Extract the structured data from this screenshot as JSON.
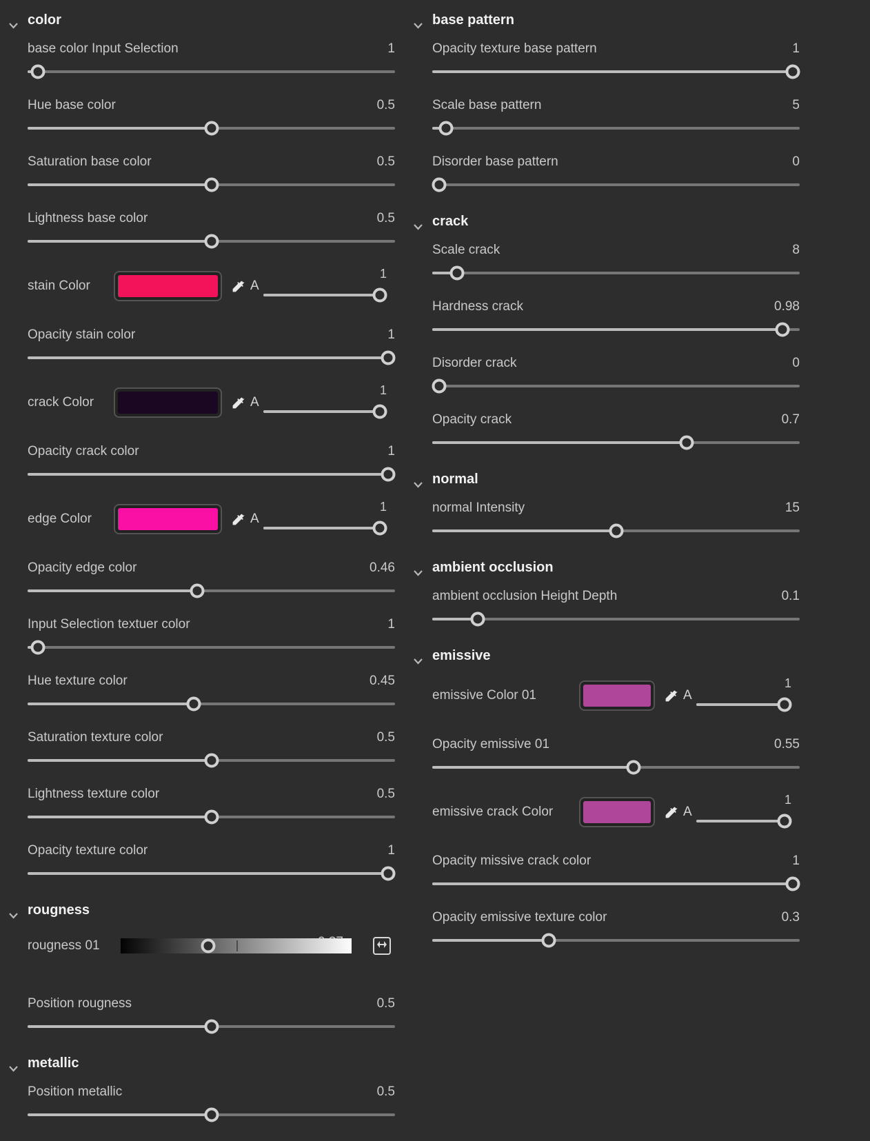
{
  "colors": {
    "panel_bg": "#2e2d2d",
    "header_text": "#f1f1f1",
    "label_text": "#c9c9c9",
    "track_filled": "#bcbcbc",
    "track_empty": "#777676",
    "handle_ring": "#d0d0d0",
    "stain_color": "#f2135a",
    "crack_color": "#1c0723",
    "edge_color": "#fb10a5",
    "emissive_color_01": "#b0469a",
    "emissive_crack_color": "#b0469a"
  },
  "icons": {
    "alpha_label": "A",
    "eyedropper": "eyedropper-icon",
    "chevron": "chevron-down-icon",
    "expand": "left-right-arrows-icon"
  },
  "columns": [
    {
      "name": "left",
      "sections": [
        {
          "title": "color",
          "rows": [
            {
              "type": "slider",
              "label": "base color Input Selection",
              "value": "1",
              "pos": 0.01
            },
            {
              "type": "slider",
              "label": "Hue base color",
              "value": "0.5",
              "pos": 0.5
            },
            {
              "type": "slider",
              "label": "Saturation base color",
              "value": "0.5",
              "pos": 0.5
            },
            {
              "type": "slider",
              "label": "Lightness base color",
              "value": "0.5",
              "pos": 0.5
            },
            {
              "type": "color",
              "label": "stain Color",
              "swatch": "#f2135a",
              "alpha_value": "1",
              "alpha_pos": 1
            },
            {
              "type": "slider",
              "label": "Opacity stain color",
              "value": "1",
              "pos": 1
            },
            {
              "type": "color",
              "label": "crack Color",
              "swatch": "#1c0723",
              "alpha_value": "1",
              "alpha_pos": 1
            },
            {
              "type": "slider",
              "label": "Opacity crack color",
              "value": "1",
              "pos": 1
            },
            {
              "type": "color",
              "label": "edge Color",
              "swatch": "#fb10a5",
              "alpha_value": "1",
              "alpha_pos": 1
            },
            {
              "type": "slider",
              "label": "Opacity edge color",
              "value": "0.46",
              "pos": 0.46
            },
            {
              "type": "slider",
              "label": "Input Selection textuer color",
              "value": "1",
              "pos": 0.01
            },
            {
              "type": "slider",
              "label": "Hue texture color",
              "value": "0.45",
              "pos": 0.45
            },
            {
              "type": "slider",
              "label": "Saturation texture color",
              "value": "0.5",
              "pos": 0.5
            },
            {
              "type": "slider",
              "label": "Lightness texture color",
              "value": "0.5",
              "pos": 0.5
            },
            {
              "type": "slider",
              "label": "Opacity texture color",
              "value": "1",
              "pos": 1
            }
          ]
        },
        {
          "title": "rougness",
          "rows": [
            {
              "type": "gradient",
              "label": "rougness 01",
              "value": "0.37",
              "pos": 0.37
            },
            {
              "type": "slider",
              "label": "Position rougness",
              "value": "0.5",
              "pos": 0.5
            }
          ]
        },
        {
          "title": "metallic",
          "rows": [
            {
              "type": "slider",
              "label": "Position metallic",
              "value": "0.5",
              "pos": 0.5
            }
          ]
        }
      ]
    },
    {
      "name": "right",
      "sections": [
        {
          "title": "base pattern",
          "rows": [
            {
              "type": "slider",
              "label": "Opacity texture base pattern",
              "value": "1",
              "pos": 1
            },
            {
              "type": "slider",
              "label": "Scale base pattern",
              "value": "5",
              "pos": 0.02
            },
            {
              "type": "slider",
              "label": "Disorder base pattern",
              "value": "0",
              "pos": 0
            }
          ]
        },
        {
          "title": "crack",
          "rows": [
            {
              "type": "slider",
              "label": "Scale crack",
              "value": "8",
              "pos": 0.05
            },
            {
              "type": "slider",
              "label": "Hardness crack",
              "value": "0.98",
              "pos": 0.97
            },
            {
              "type": "slider",
              "label": "Disorder crack",
              "value": "0",
              "pos": 0
            },
            {
              "type": "slider",
              "label": "Opacity crack",
              "value": "0.7",
              "pos": 0.7
            }
          ]
        },
        {
          "title": "normal",
          "rows": [
            {
              "type": "slider",
              "label": "normal Intensity",
              "value": "15",
              "pos": 0.5
            }
          ]
        },
        {
          "title": "ambient occlusion",
          "rows": [
            {
              "type": "slider",
              "label": "ambient occlusion Height Depth",
              "value": "0.1",
              "pos": 0.11
            }
          ]
        },
        {
          "title": "emissive",
          "rows": [
            {
              "type": "color",
              "label": "emissive Color 01",
              "swatch": "#b0469a",
              "alpha_value": "1",
              "alpha_pos": 1
            },
            {
              "type": "slider",
              "label": "Opacity emissive 01",
              "value": "0.55",
              "pos": 0.55
            },
            {
              "type": "color",
              "label": "emissive crack Color",
              "swatch": "#b0469a",
              "alpha_value": "1",
              "alpha_pos": 1
            },
            {
              "type": "slider",
              "label": "Opacity missive crack color",
              "value": "1",
              "pos": 1
            },
            {
              "type": "slider",
              "label": "Opacity emissive texture color",
              "value": "0.3",
              "pos": 0.31
            }
          ]
        }
      ]
    }
  ]
}
